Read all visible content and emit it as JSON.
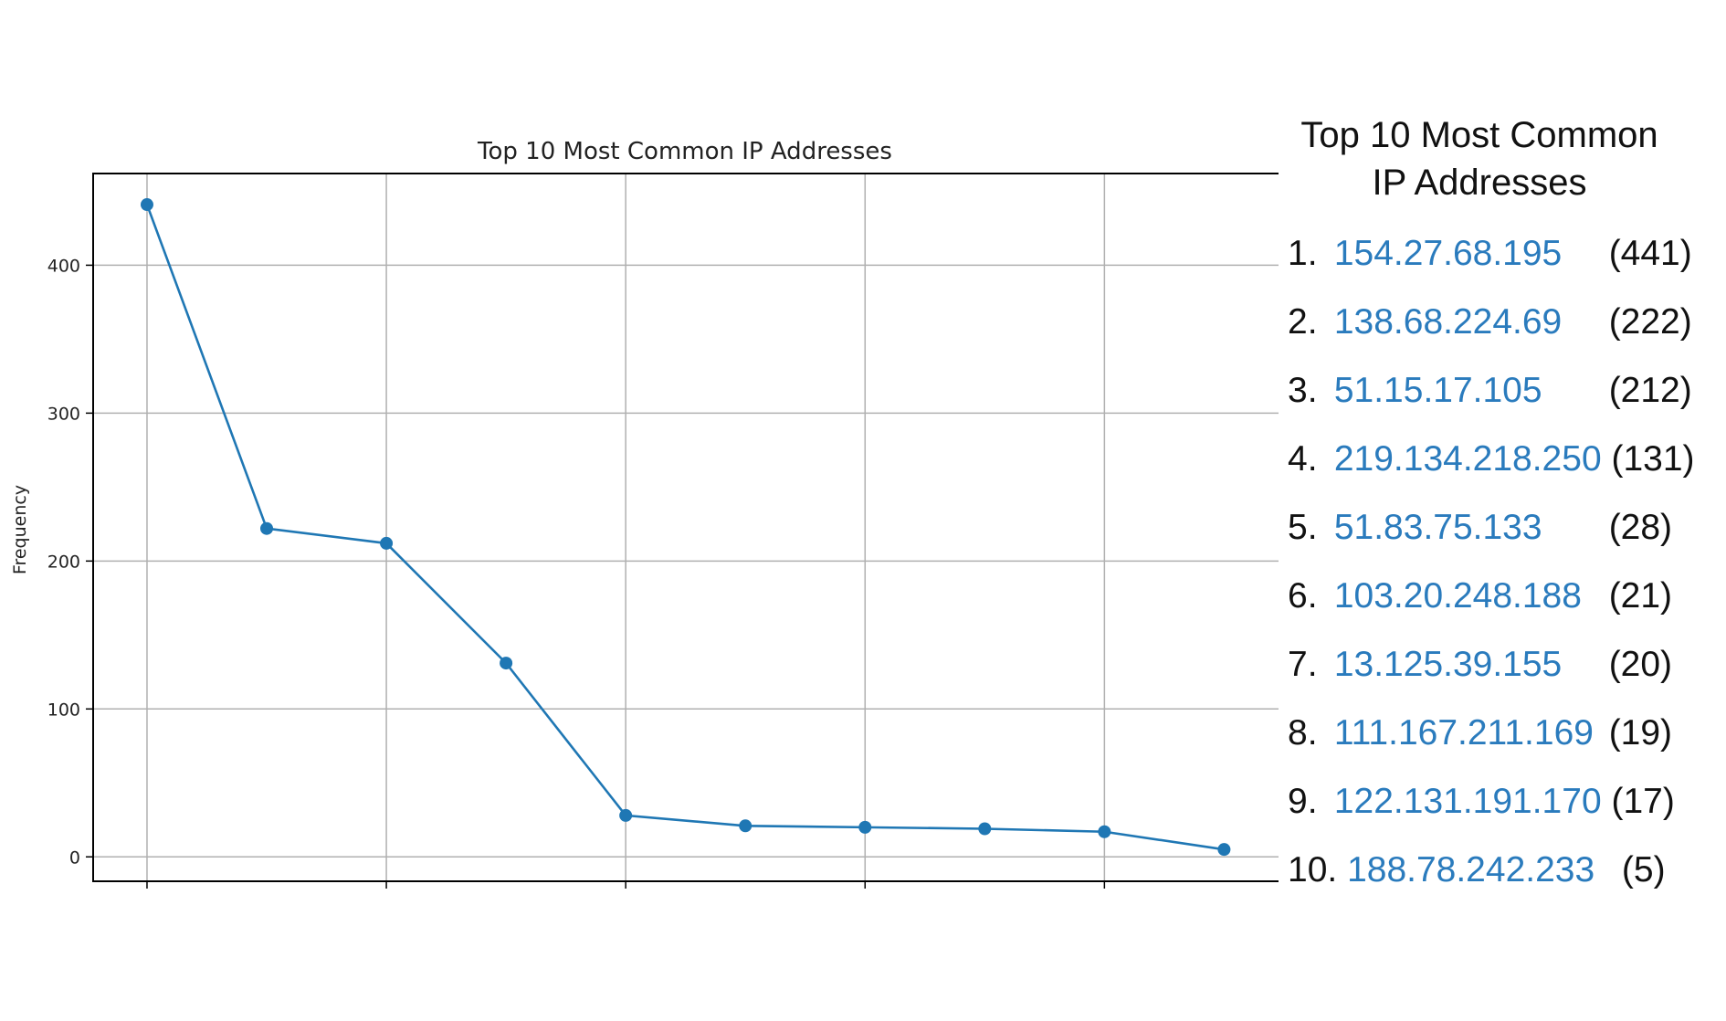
{
  "colors": {
    "line": "#1f77b4",
    "grid": "#b0b0b0",
    "axis": "#000000",
    "ip_text": "#2a7bbd"
  },
  "side_panel": {
    "title_line1": "Top 10 Most Common",
    "title_line2": "IP Addresses",
    "items": [
      {
        "rank": "1.",
        "ip": "154.27.68.195",
        "count": "(441)"
      },
      {
        "rank": "2.",
        "ip": "138.68.224.69",
        "count": "(222)"
      },
      {
        "rank": "3.",
        "ip": "51.15.17.105",
        "count": "(212)"
      },
      {
        "rank": "4.",
        "ip": "219.134.218.250",
        "count": "(131)"
      },
      {
        "rank": "5.",
        "ip": "51.83.75.133",
        "count": "(28)"
      },
      {
        "rank": "6.",
        "ip": "103.20.248.188",
        "count": "(21)"
      },
      {
        "rank": "7.",
        "ip": "13.125.39.155",
        "count": "(20)"
      },
      {
        "rank": "8.",
        "ip": "111.167.211.169",
        "count": "(19)"
      },
      {
        "rank": "9.",
        "ip": "122.131.191.170",
        "count": "(17)"
      },
      {
        "rank": "10.",
        "ip": "188.78.242.233",
        "count": "(5)"
      }
    ]
  },
  "chart_data": {
    "type": "line",
    "title": "Top 10 Most Common IP Addresses",
    "xlabel": "",
    "ylabel": "Frequency",
    "x": [
      0,
      1,
      2,
      3,
      4,
      5,
      6,
      7,
      8,
      9
    ],
    "series": [
      {
        "values": [
          441,
          222,
          212,
          131,
          28,
          21,
          20,
          19,
          17,
          5
        ],
        "marker": "circle"
      }
    ],
    "xlim": [
      -0.45,
      9.47
    ],
    "ylim": [
      -16.5,
      462
    ],
    "yticks": [
      0,
      100,
      200,
      300,
      400
    ],
    "ytick_labels": [
      "0",
      "100",
      "200",
      "300",
      "400"
    ],
    "xgrid_positions": [
      0,
      2,
      4,
      6,
      8
    ],
    "grid": true,
    "legend": "none"
  }
}
